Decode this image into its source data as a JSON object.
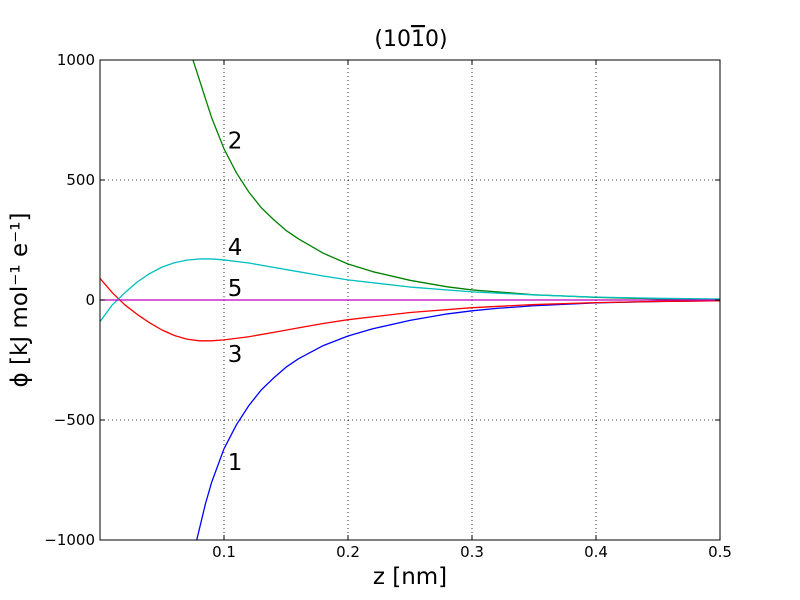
{
  "chart_data": {
    "type": "line",
    "title": "(10ī0)",
    "title_parts": {
      "prefix": "(10",
      "overbar_digit": "1",
      "suffix": "0)"
    },
    "xlabel": "z [nm]",
    "ylabel": "ϕ [kJ mol⁻¹ e⁻¹]",
    "xlim": [
      0.0,
      0.5
    ],
    "ylim": [
      -1000,
      1000
    ],
    "x_ticks": [
      0.1,
      0.2,
      0.3,
      0.4,
      0.5
    ],
    "x_tick_labels": [
      "0.1",
      "0.2",
      "0.3",
      "0.4",
      "0.5"
    ],
    "y_ticks": [
      -1000,
      -500,
      0,
      500,
      1000
    ],
    "y_tick_labels": [
      "−1000",
      "−500",
      "0",
      "500",
      "1000"
    ],
    "grid": true,
    "series": [
      {
        "label": "1",
        "color": "#0000ff",
        "x": [
          0.078,
          0.085,
          0.09,
          0.1,
          0.11,
          0.12,
          0.13,
          0.14,
          0.15,
          0.16,
          0.18,
          0.2,
          0.22,
          0.25,
          0.28,
          0.3,
          0.32,
          0.35,
          0.4,
          0.45,
          0.5
        ],
        "y": [
          -1000,
          -850,
          -760,
          -620,
          -520,
          -440,
          -375,
          -325,
          -280,
          -245,
          -190,
          -150,
          -120,
          -85,
          -58,
          -45,
          -35,
          -24,
          -12,
          -6,
          -3
        ]
      },
      {
        "label": "2",
        "color": "#008000",
        "x": [
          0.075,
          0.08,
          0.085,
          0.09,
          0.1,
          0.11,
          0.12,
          0.13,
          0.14,
          0.15,
          0.16,
          0.18,
          0.2,
          0.22,
          0.25,
          0.28,
          0.3,
          0.35,
          0.4,
          0.45,
          0.5
        ],
        "y": [
          1000,
          920,
          840,
          760,
          630,
          530,
          450,
          385,
          335,
          290,
          255,
          195,
          150,
          118,
          82,
          55,
          42,
          22,
          11,
          5,
          2
        ]
      },
      {
        "label": "3",
        "color": "#ff0000",
        "x": [
          0.0,
          0.01,
          0.02,
          0.03,
          0.04,
          0.05,
          0.06,
          0.07,
          0.08,
          0.09,
          0.1,
          0.12,
          0.14,
          0.16,
          0.18,
          0.2,
          0.25,
          0.3,
          0.35,
          0.4,
          0.45,
          0.5
        ],
        "y": [
          90,
          30,
          -20,
          -60,
          -95,
          -125,
          -148,
          -163,
          -170,
          -170,
          -166,
          -153,
          -135,
          -116,
          -98,
          -82,
          -52,
          -32,
          -19,
          -11,
          -6,
          -3
        ]
      },
      {
        "label": "4",
        "color": "#00bfbf",
        "x": [
          0.0,
          0.01,
          0.02,
          0.03,
          0.04,
          0.05,
          0.06,
          0.07,
          0.08,
          0.09,
          0.1,
          0.12,
          0.14,
          0.16,
          0.18,
          0.2,
          0.25,
          0.3,
          0.35,
          0.4,
          0.45,
          0.5
        ],
        "y": [
          -90,
          -20,
          30,
          75,
          110,
          137,
          155,
          166,
          171,
          171,
          167,
          154,
          136,
          118,
          100,
          84,
          54,
          34,
          21,
          12,
          7,
          4
        ]
      },
      {
        "label": "5",
        "color": "#bf00bf",
        "x": [
          0.0,
          0.5
        ],
        "y": [
          0,
          0
        ]
      }
    ],
    "annotations": [
      {
        "text": "1",
        "x": 0.103,
        "y": -675
      },
      {
        "text": "2",
        "x": 0.103,
        "y": 665
      },
      {
        "text": "3",
        "x": 0.103,
        "y": -225
      },
      {
        "text": "4",
        "x": 0.103,
        "y": 220
      },
      {
        "text": "5",
        "x": 0.103,
        "y": 50
      }
    ]
  }
}
